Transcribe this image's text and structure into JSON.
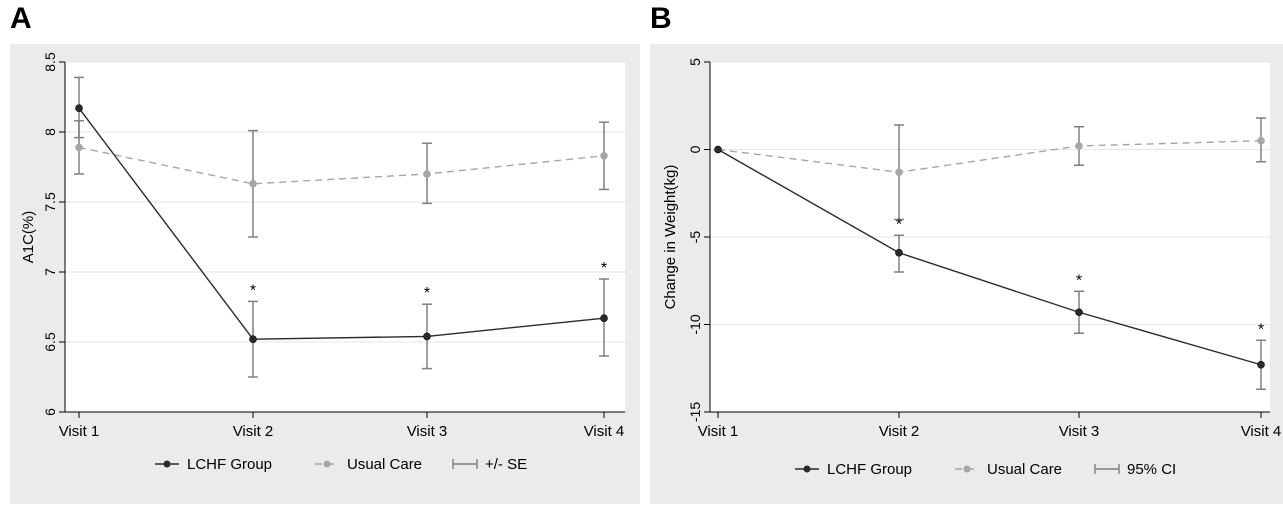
{
  "panels": {
    "a": {
      "letter": "A",
      "legend": {
        "group": "LCHF Group",
        "usual": "Usual Care",
        "err": "+/- SE"
      }
    },
    "b": {
      "letter": "B",
      "legend": {
        "group": "LCHF Group",
        "usual": "Usual Care",
        "err": "95% CI"
      }
    }
  },
  "colors": {
    "lchf": "#2b2b2b",
    "usual": "#a6a6a6",
    "err": "#808080"
  },
  "chart_data": [
    {
      "type": "line",
      "title": "",
      "xlabel": "",
      "ylabel": "A1C(%)",
      "categories": [
        "Visit 1",
        "Visit 2",
        "Visit 3",
        "Visit 4"
      ],
      "ylim": [
        6,
        8.5
      ],
      "yticks": [
        6,
        6.5,
        7,
        7.5,
        8,
        8.5
      ],
      "ytick_labels": [
        "6",
        "6.5",
        "7",
        "7.5",
        "8",
        "8.5"
      ],
      "grid": true,
      "series": [
        {
          "name": "LCHF Group",
          "style": "solid",
          "values": [
            8.17,
            6.52,
            6.54,
            6.67
          ],
          "lower": [
            7.96,
            6.25,
            6.31,
            6.4
          ],
          "upper": [
            8.39,
            6.79,
            6.77,
            6.95
          ]
        },
        {
          "name": "Usual Care",
          "style": "dashed",
          "values": [
            7.89,
            7.63,
            7.7,
            7.83
          ],
          "lower": [
            7.7,
            7.25,
            7.49,
            7.59
          ],
          "upper": [
            8.08,
            8.01,
            7.92,
            8.07
          ]
        }
      ],
      "annotations": [
        {
          "text": "*",
          "x": "Visit 2",
          "y": 6.79
        },
        {
          "text": "*",
          "x": "Visit 3",
          "y": 6.77
        },
        {
          "text": "*",
          "x": "Visit 4",
          "y": 6.95
        }
      ]
    },
    {
      "type": "line",
      "title": "",
      "xlabel": "",
      "ylabel": "Change in Weight(kg)",
      "categories": [
        "Visit 1",
        "Visit 2",
        "Visit 3",
        "Visit 4"
      ],
      "ylim": [
        -15,
        5
      ],
      "yticks": [
        -15,
        -10,
        -5,
        0,
        5
      ],
      "ytick_labels": [
        "-15",
        "-10",
        "-5",
        "0",
        "5"
      ],
      "grid": true,
      "series": [
        {
          "name": "LCHF Group",
          "style": "solid",
          "values": [
            0,
            -5.9,
            -9.3,
            -12.3
          ],
          "lower": [
            0,
            -7.0,
            -10.5,
            -13.7
          ],
          "upper": [
            0,
            -4.9,
            -8.1,
            -10.9
          ]
        },
        {
          "name": "Usual Care",
          "style": "dashed",
          "values": [
            0,
            -1.3,
            0.2,
            0.5
          ],
          "lower": [
            0,
            -4.0,
            -0.9,
            -0.7
          ],
          "upper": [
            0,
            1.4,
            1.3,
            1.8
          ]
        }
      ],
      "annotations": [
        {
          "text": "*",
          "x": "Visit 2",
          "y": -4.9
        },
        {
          "text": "*",
          "x": "Visit 3",
          "y": -8.1
        },
        {
          "text": "*",
          "x": "Visit 4",
          "y": -10.9
        }
      ]
    }
  ]
}
